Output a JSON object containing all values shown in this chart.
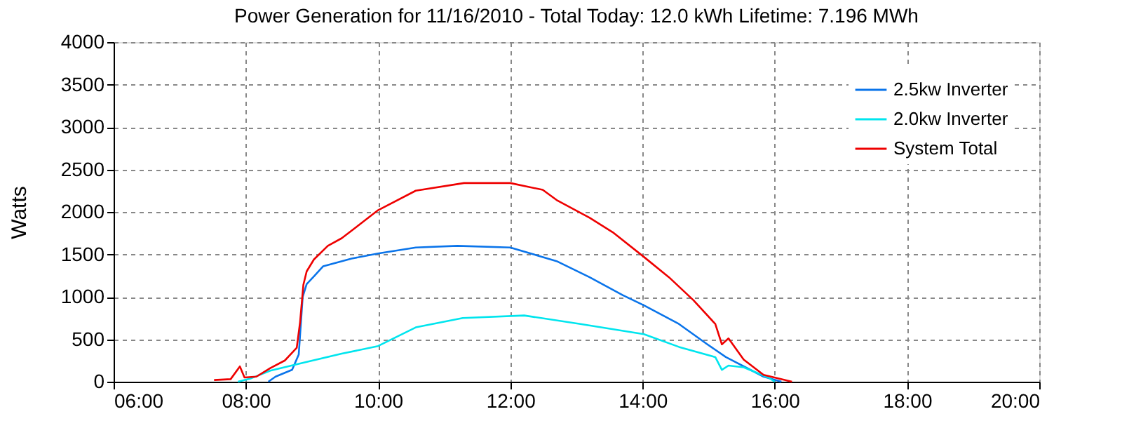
{
  "chart_data": {
    "type": "line",
    "title": "Power Generation for 11/16/2010 - Total Today: 12.0 kWh   Lifetime: 7.196 MWh",
    "ylabel": "Watts",
    "xlim": [
      6,
      20
    ],
    "xticks": [
      {
        "value": 6,
        "label": "06:00"
      },
      {
        "value": 8,
        "label": "08:00"
      },
      {
        "value": 10,
        "label": "10:00"
      },
      {
        "value": 12,
        "label": "12:00"
      },
      {
        "value": 14,
        "label": "14:00"
      },
      {
        "value": 16,
        "label": "16:00"
      },
      {
        "value": 18,
        "label": "18:00"
      },
      {
        "value": 20,
        "label": "20:00"
      }
    ],
    "ylim": [
      0,
      4000
    ],
    "yticks": [
      0,
      500,
      1000,
      1500,
      2000,
      2500,
      3000,
      3500,
      4000
    ],
    "grid": true,
    "legend": "top right",
    "marker": "none",
    "line_style": "solid",
    "series": [
      {
        "name": "2.5kw Inverter",
        "color": "#0a74ea",
        "x": [
          8.34,
          8.45,
          8.7,
          8.8,
          8.86,
          8.92,
          9.03,
          9.17,
          9.6,
          10.0,
          10.57,
          11.2,
          12.0,
          12.7,
          13.2,
          13.7,
          14.02,
          14.55,
          14.98,
          15.26,
          15.83,
          16.1
        ],
        "values": [
          0,
          60,
          140,
          320,
          1000,
          1150,
          1240,
          1360,
          1450,
          1510,
          1580,
          1600,
          1580,
          1420,
          1230,
          1020,
          900,
          680,
          440,
          290,
          60,
          0
        ]
      },
      {
        "name": "2.0kw Inverter",
        "color": "#00e5ee",
        "x": [
          7.88,
          8.08,
          8.37,
          8.9,
          9.45,
          10.0,
          10.57,
          11.28,
          12.21,
          13.06,
          14.02,
          14.55,
          15.1,
          15.2,
          15.3,
          15.53,
          15.9,
          16.0
        ],
        "values": [
          0,
          40,
          130,
          230,
          330,
          420,
          640,
          750,
          780,
          680,
          560,
          410,
          290,
          140,
          190,
          170,
          50,
          0
        ]
      },
      {
        "name": "System Total",
        "color": "#ee0000",
        "x": [
          7.52,
          7.77,
          7.91,
          7.98,
          8.16,
          8.37,
          8.59,
          8.77,
          8.82,
          8.87,
          8.92,
          9.03,
          9.24,
          9.45,
          10.0,
          10.57,
          11.3,
          12.0,
          12.49,
          12.7,
          13.2,
          13.55,
          14.02,
          14.4,
          14.77,
          15.1,
          15.2,
          15.3,
          15.53,
          15.83,
          16.26
        ],
        "values": [
          20,
          30,
          180,
          50,
          60,
          160,
          250,
          400,
          700,
          1140,
          1300,
          1440,
          1600,
          1690,
          2020,
          2250,
          2340,
          2340,
          2260,
          2140,
          1930,
          1760,
          1470,
          1230,
          960,
          680,
          440,
          510,
          260,
          80,
          0
        ]
      }
    ]
  }
}
